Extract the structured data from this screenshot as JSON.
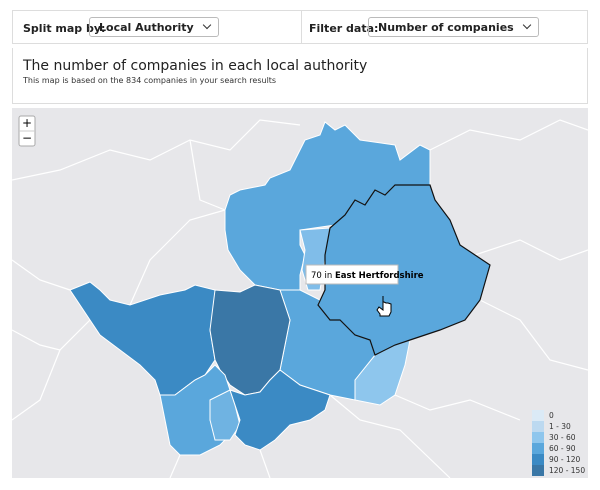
{
  "controls": {
    "split_label": "Split map by:",
    "split_value": "Local Authority",
    "filter_label": "Filter data:",
    "filter_value": "Number of companies"
  },
  "header": {
    "title": "The number of companies in each local authority",
    "subtitle": "This map is based on the 834 companies in your search results"
  },
  "zoom": {
    "in": "+",
    "out": "−"
  },
  "tooltip": {
    "value": 70,
    "connector": "in",
    "area": "East Hertfordshire"
  },
  "legend": [
    {
      "label": "0",
      "color": "#dbeaf6"
    },
    {
      "label": "1 - 30",
      "color": "#bcd9f0"
    },
    {
      "label": "30 - 60",
      "color": "#8ec6ed"
    },
    {
      "label": "60 - 90",
      "color": "#5aa7dc"
    },
    {
      "label": "90 - 120",
      "color": "#3b8ac4"
    },
    {
      "label": "120 - 150",
      "color": "#3a77a6"
    }
  ]
}
